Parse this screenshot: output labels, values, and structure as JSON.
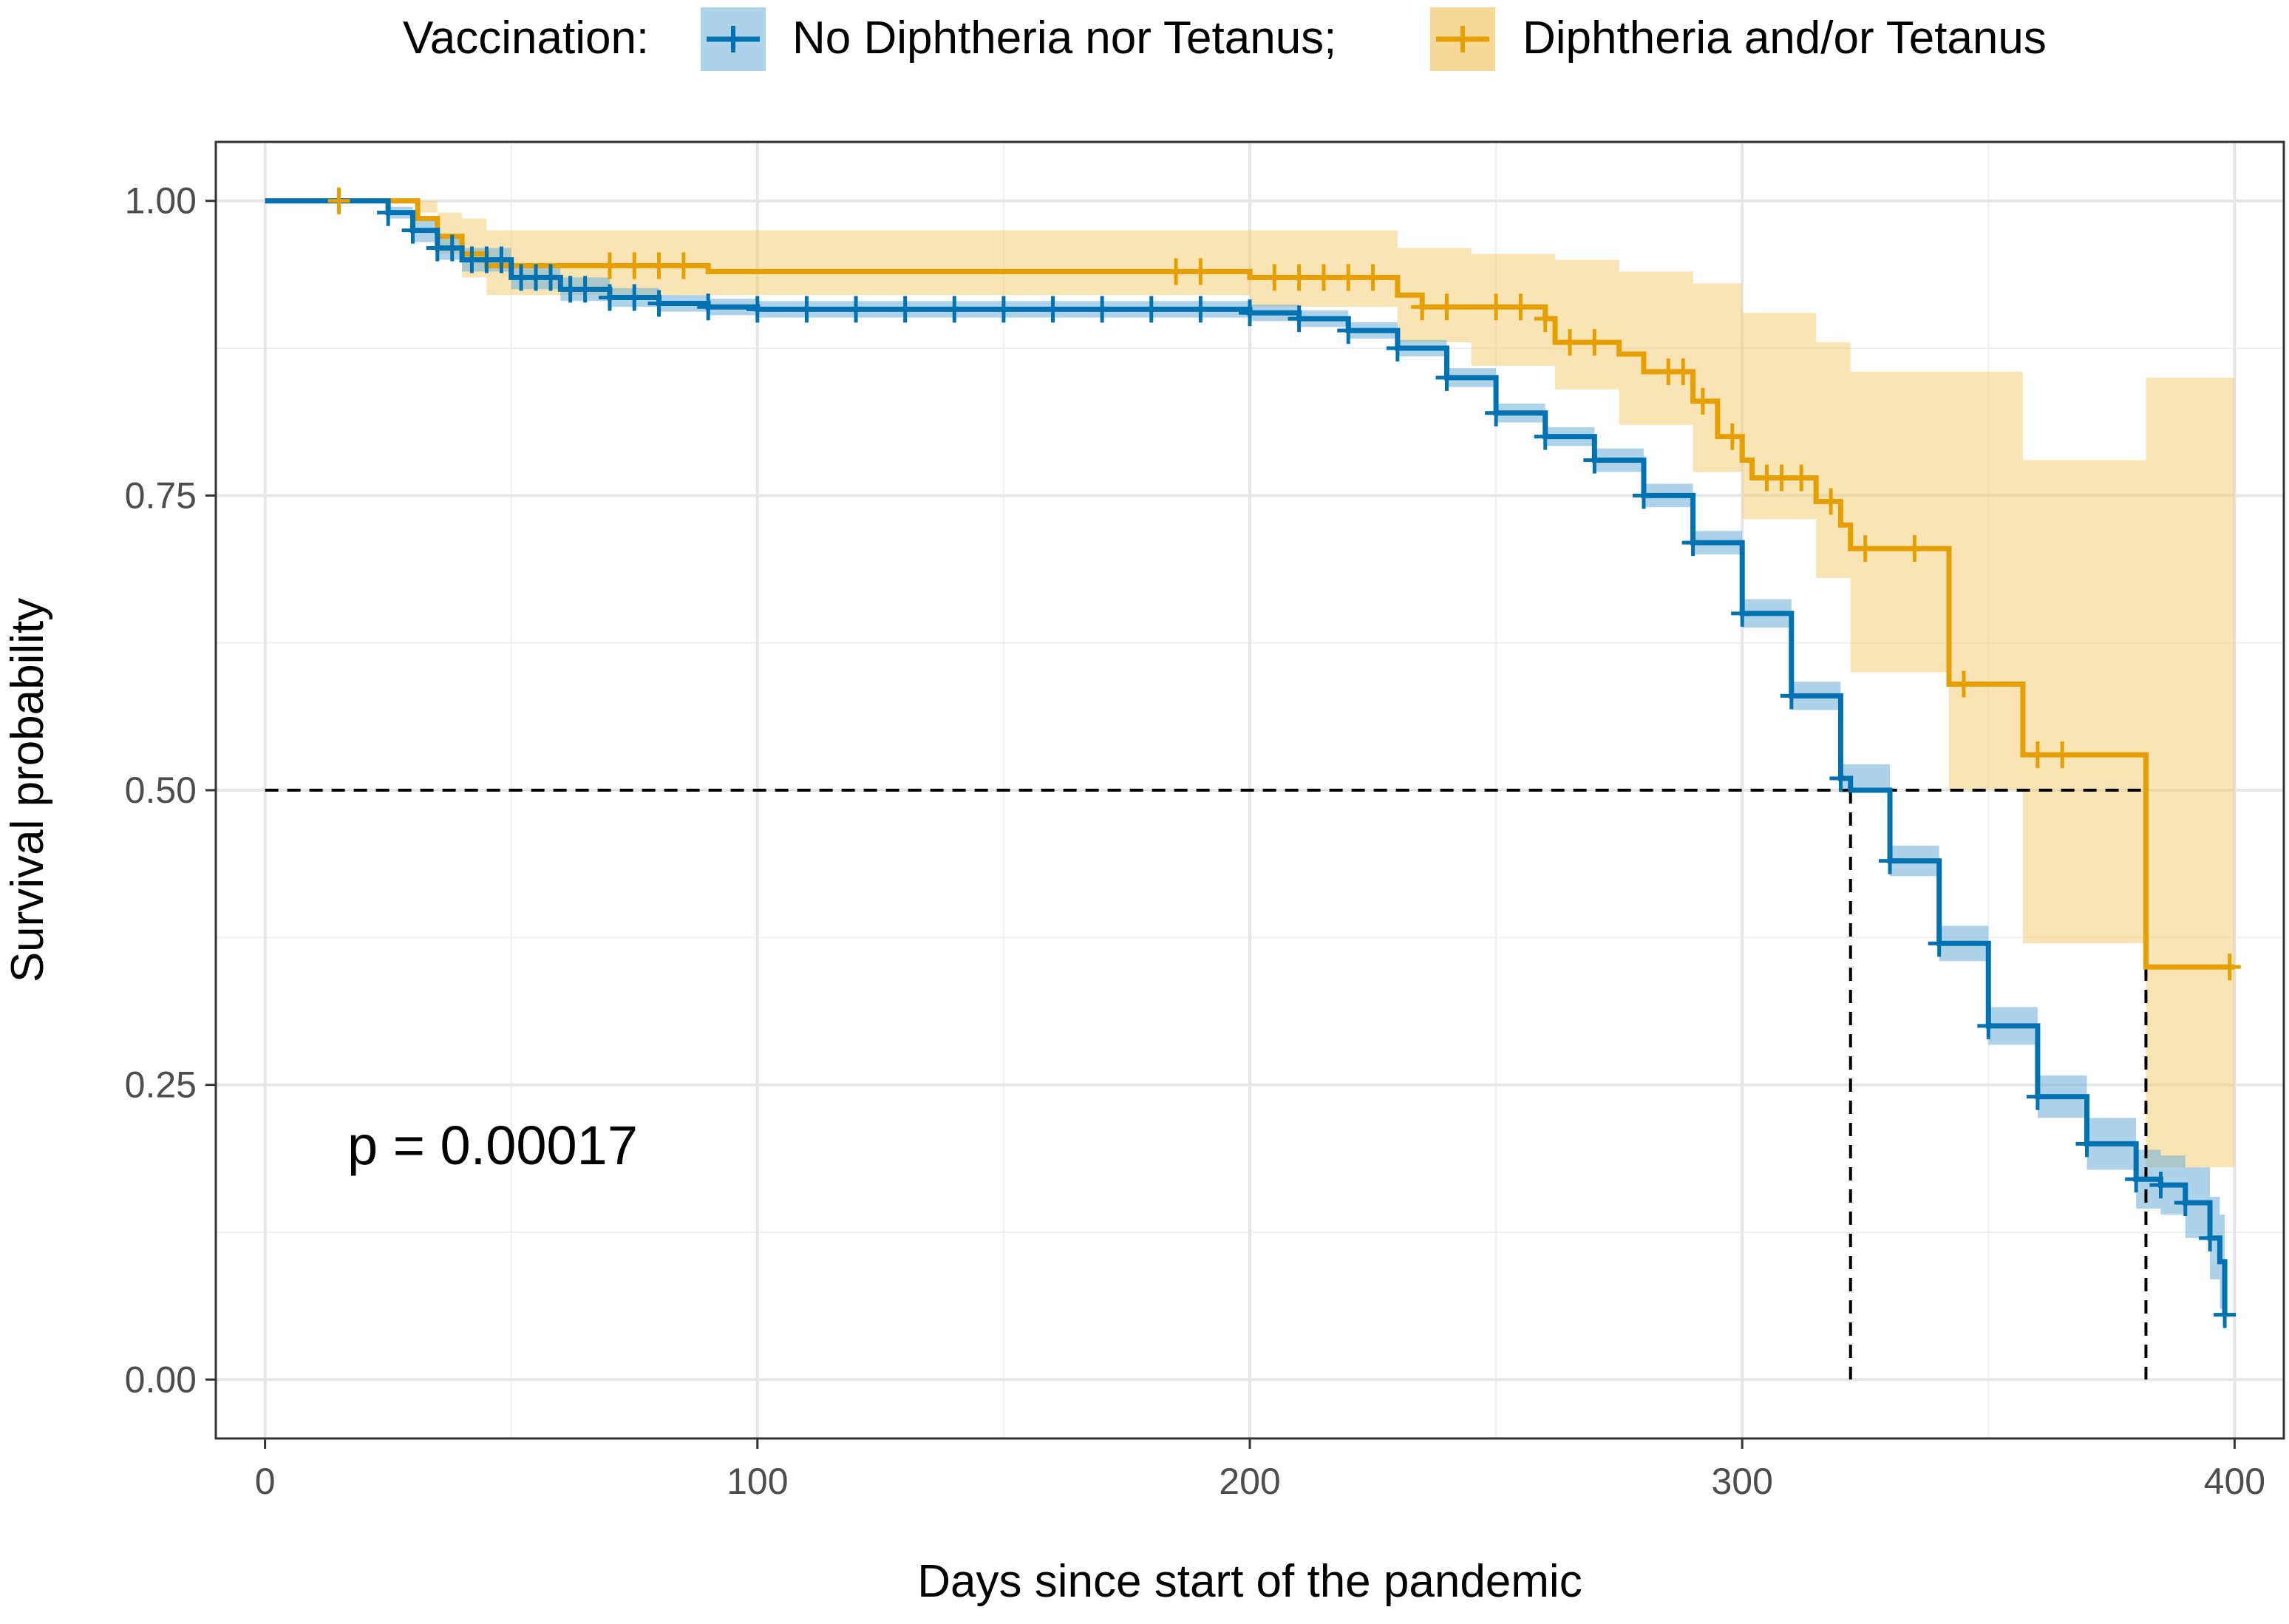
{
  "legend": {
    "title": "Vaccination:",
    "position": "top",
    "items": [
      {
        "label": "No Diphtheria nor Tetanus;",
        "color": "#0072B2",
        "band_color": "#6BAED6"
      },
      {
        "label": "Diphtheria and/or Tetanus",
        "color": "#E69F00",
        "band_color": "#F3C96B"
      }
    ]
  },
  "annotation": {
    "pvalue_text": "p = 0.00017"
  },
  "chart_data": {
    "type": "line",
    "subtype": "kaplan-meier survival curve with confidence bands",
    "xlabel": "Days since start of the pandemic",
    "ylabel": "Survival probability",
    "xlim": [
      -10,
      410
    ],
    "ylim": [
      -0.05,
      1.05
    ],
    "x_ticks": [
      0,
      100,
      200,
      300,
      400
    ],
    "x_tick_labels": [
      "0",
      "100",
      "200",
      "300",
      "400"
    ],
    "y_ticks": [
      0,
      0.25,
      0.5,
      0.75,
      1
    ],
    "y_tick_labels": [
      "0.00",
      "0.25",
      "0.50",
      "0.75",
      "1.00"
    ],
    "grid": true,
    "median_lines": {
      "y": 0.5,
      "x_values": [
        322,
        382
      ]
    },
    "series": [
      {
        "name": "No Diphtheria nor Tetanus;",
        "color": "#0072B2",
        "points": [
          [
            0,
            1.0
          ],
          [
            25,
            0.99
          ],
          [
            30,
            0.975
          ],
          [
            35,
            0.96
          ],
          [
            40,
            0.95
          ],
          [
            50,
            0.935
          ],
          [
            60,
            0.925
          ],
          [
            70,
            0.918
          ],
          [
            80,
            0.913
          ],
          [
            90,
            0.91
          ],
          [
            100,
            0.908
          ],
          [
            150,
            0.908
          ],
          [
            200,
            0.905
          ],
          [
            210,
            0.9
          ],
          [
            220,
            0.89
          ],
          [
            230,
            0.875
          ],
          [
            240,
            0.85
          ],
          [
            250,
            0.82
          ],
          [
            260,
            0.8
          ],
          [
            270,
            0.78
          ],
          [
            280,
            0.75
          ],
          [
            290,
            0.71
          ],
          [
            300,
            0.65
          ],
          [
            310,
            0.58
          ],
          [
            320,
            0.51
          ],
          [
            322,
            0.5
          ],
          [
            330,
            0.44
          ],
          [
            340,
            0.37
          ],
          [
            350,
            0.3
          ],
          [
            360,
            0.24
          ],
          [
            370,
            0.2
          ],
          [
            380,
            0.17
          ],
          [
            385,
            0.165
          ],
          [
            390,
            0.15
          ],
          [
            395,
            0.12
          ],
          [
            397,
            0.1
          ],
          [
            398,
            0.055
          ]
        ],
        "ci_upper": [
          [
            0,
            1.0
          ],
          [
            25,
            0.995
          ],
          [
            30,
            0.985
          ],
          [
            35,
            0.97
          ],
          [
            40,
            0.96
          ],
          [
            50,
            0.945
          ],
          [
            60,
            0.935
          ],
          [
            70,
            0.926
          ],
          [
            80,
            0.92
          ],
          [
            90,
            0.917
          ],
          [
            100,
            0.915
          ],
          [
            150,
            0.915
          ],
          [
            200,
            0.912
          ],
          [
            210,
            0.907
          ],
          [
            220,
            0.897
          ],
          [
            230,
            0.882
          ],
          [
            240,
            0.858
          ],
          [
            250,
            0.828
          ],
          [
            260,
            0.808
          ],
          [
            270,
            0.79
          ],
          [
            280,
            0.76
          ],
          [
            290,
            0.72
          ],
          [
            300,
            0.662
          ],
          [
            310,
            0.592
          ],
          [
            320,
            0.522
          ],
          [
            330,
            0.453
          ],
          [
            340,
            0.385
          ],
          [
            350,
            0.316
          ],
          [
            360,
            0.258
          ],
          [
            370,
            0.222
          ],
          [
            380,
            0.195
          ],
          [
            385,
            0.19
          ],
          [
            390,
            0.18
          ],
          [
            395,
            0.155
          ],
          [
            397,
            0.14
          ],
          [
            398,
            0.11
          ]
        ],
        "ci_lower": [
          [
            0,
            1.0
          ],
          [
            25,
            0.985
          ],
          [
            30,
            0.965
          ],
          [
            35,
            0.95
          ],
          [
            40,
            0.94
          ],
          [
            50,
            0.925
          ],
          [
            60,
            0.915
          ],
          [
            70,
            0.91
          ],
          [
            80,
            0.906
          ],
          [
            90,
            0.903
          ],
          [
            100,
            0.901
          ],
          [
            150,
            0.901
          ],
          [
            200,
            0.898
          ],
          [
            210,
            0.893
          ],
          [
            220,
            0.883
          ],
          [
            230,
            0.868
          ],
          [
            240,
            0.842
          ],
          [
            250,
            0.812
          ],
          [
            260,
            0.792
          ],
          [
            270,
            0.77
          ],
          [
            280,
            0.74
          ],
          [
            290,
            0.7
          ],
          [
            300,
            0.638
          ],
          [
            310,
            0.568
          ],
          [
            320,
            0.498
          ],
          [
            330,
            0.427
          ],
          [
            340,
            0.355
          ],
          [
            350,
            0.284
          ],
          [
            360,
            0.222
          ],
          [
            370,
            0.178
          ],
          [
            380,
            0.145
          ],
          [
            385,
            0.14
          ],
          [
            390,
            0.12
          ],
          [
            395,
            0.085
          ],
          [
            397,
            0.06
          ],
          [
            398,
            0.015
          ]
        ],
        "censor_x": [
          25,
          30,
          35,
          38,
          42,
          45,
          48,
          52,
          55,
          58,
          62,
          65,
          70,
          75,
          80,
          90,
          100,
          110,
          120,
          130,
          140,
          150,
          160,
          170,
          180,
          190,
          200,
          210,
          220,
          230,
          240,
          250,
          260,
          270,
          280,
          290,
          300,
          310,
          320,
          330,
          340,
          350,
          360,
          370,
          380,
          385,
          390,
          395,
          398
        ]
      },
      {
        "name": "Diphtheria and/or Tetanus",
        "color": "#E69F00",
        "points": [
          [
            0,
            1.0
          ],
          [
            31,
            1.0
          ],
          [
            31,
            0.985
          ],
          [
            35,
            0.97
          ],
          [
            40,
            0.955
          ],
          [
            45,
            0.945
          ],
          [
            90,
            0.945
          ],
          [
            90,
            0.94
          ],
          [
            200,
            0.94
          ],
          [
            200,
            0.935
          ],
          [
            230,
            0.935
          ],
          [
            230,
            0.92
          ],
          [
            235,
            0.91
          ],
          [
            260,
            0.9
          ],
          [
            262,
            0.88
          ],
          [
            275,
            0.87
          ],
          [
            280,
            0.855
          ],
          [
            290,
            0.83
          ],
          [
            295,
            0.8
          ],
          [
            300,
            0.78
          ],
          [
            302,
            0.765
          ],
          [
            315,
            0.765
          ],
          [
            315,
            0.745
          ],
          [
            320,
            0.725
          ],
          [
            322,
            0.705
          ],
          [
            340,
            0.705
          ],
          [
            342,
            0.64
          ],
          [
            342,
            0.59
          ],
          [
            357,
            0.59
          ],
          [
            357,
            0.53
          ],
          [
            382,
            0.53
          ],
          [
            382,
            0.35
          ],
          [
            400,
            0.35
          ]
        ],
        "ci_upper": [
          [
            0,
            1.0
          ],
          [
            31,
            1.0
          ],
          [
            35,
            0.99
          ],
          [
            40,
            0.985
          ],
          [
            45,
            0.975
          ],
          [
            90,
            0.975
          ],
          [
            200,
            0.975
          ],
          [
            230,
            0.96
          ],
          [
            245,
            0.955
          ],
          [
            262,
            0.95
          ],
          [
            275,
            0.94
          ],
          [
            290,
            0.93
          ],
          [
            300,
            0.905
          ],
          [
            315,
            0.88
          ],
          [
            322,
            0.855
          ],
          [
            340,
            0.855
          ],
          [
            357,
            0.78
          ],
          [
            382,
            0.77
          ],
          [
            382,
            0.85
          ],
          [
            400,
            0.85
          ]
        ],
        "ci_lower": [
          [
            0,
            1.0
          ],
          [
            31,
            0.99
          ],
          [
            35,
            0.955
          ],
          [
            40,
            0.935
          ],
          [
            45,
            0.92
          ],
          [
            90,
            0.92
          ],
          [
            200,
            0.91
          ],
          [
            230,
            0.88
          ],
          [
            245,
            0.86
          ],
          [
            262,
            0.84
          ],
          [
            275,
            0.81
          ],
          [
            290,
            0.77
          ],
          [
            300,
            0.73
          ],
          [
            315,
            0.68
          ],
          [
            322,
            0.6
          ],
          [
            340,
            0.6
          ],
          [
            342,
            0.5
          ],
          [
            357,
            0.45
          ],
          [
            357,
            0.37
          ],
          [
            382,
            0.37
          ],
          [
            382,
            0.18
          ],
          [
            400,
            0.18
          ]
        ],
        "censor_x": [
          15,
          70,
          75,
          80,
          85,
          185,
          190,
          205,
          210,
          215,
          220,
          225,
          235,
          240,
          250,
          255,
          260,
          265,
          270,
          285,
          288,
          292,
          298,
          305,
          308,
          312,
          318,
          325,
          335,
          345,
          360,
          365,
          399
        ]
      }
    ]
  }
}
